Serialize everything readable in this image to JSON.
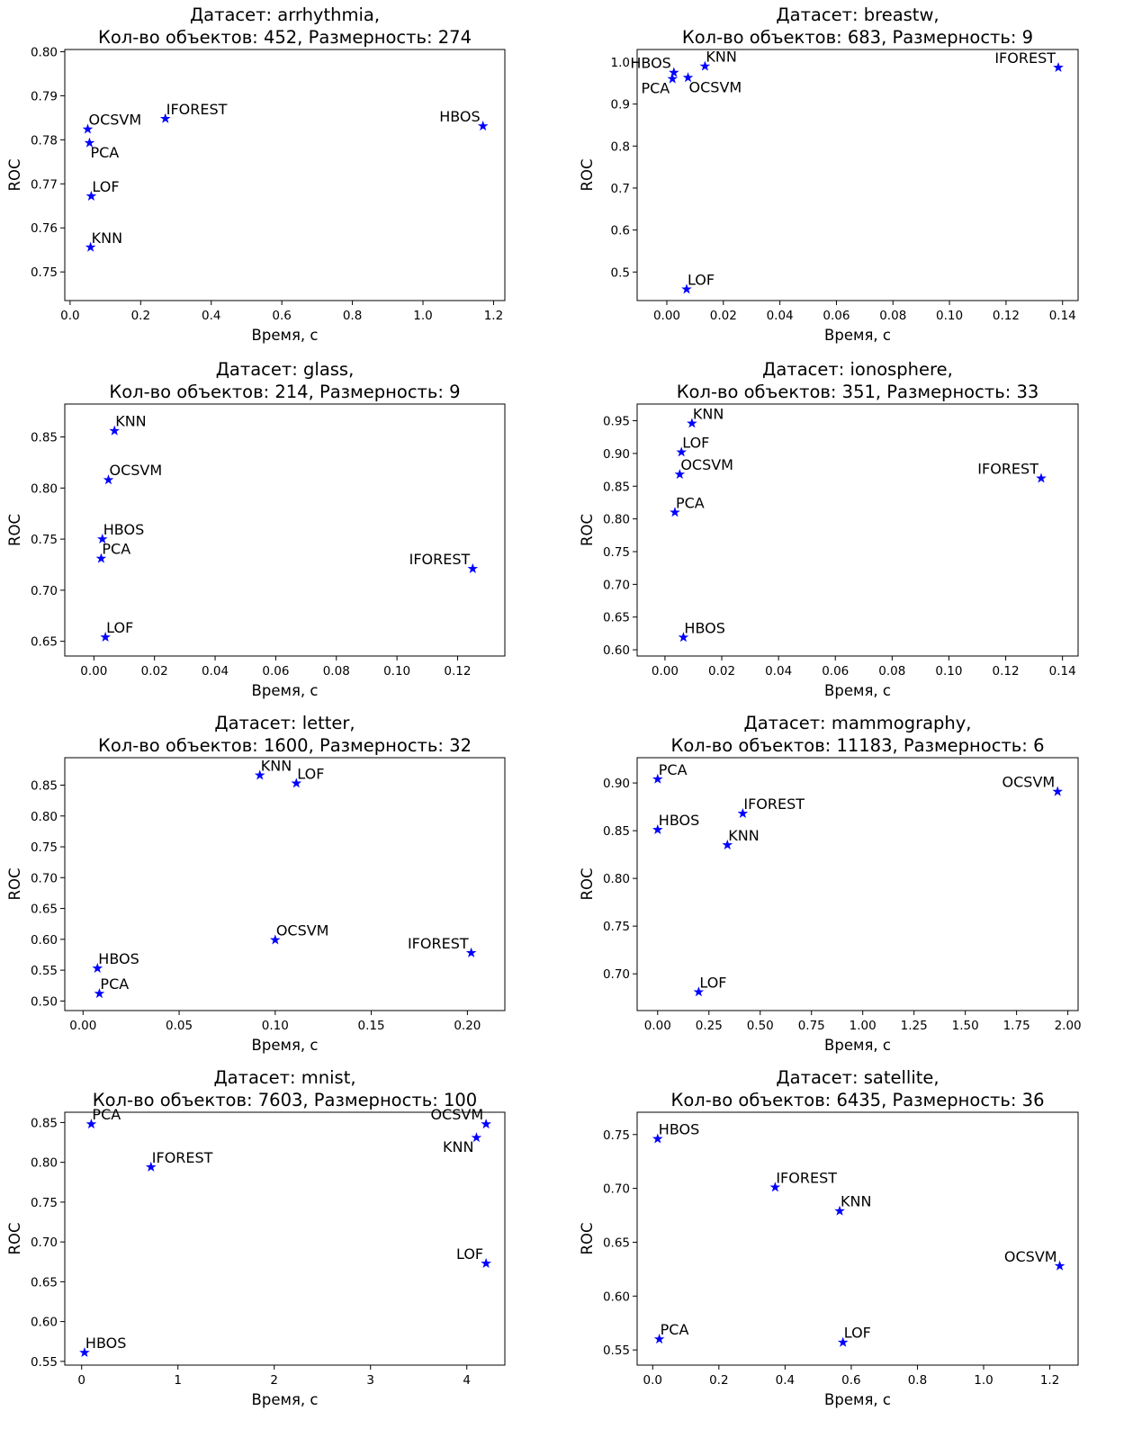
{
  "chart_data": [
    {
      "type": "scatter",
      "title_line1": "Датасет: arrhythmia,",
      "title_line2": "Кол-во объектов: 452, Размерность: 274",
      "xlabel": "Время, с",
      "ylabel": "ROC",
      "xlim": [
        -0.015,
        1.232
      ],
      "ylim": [
        0.7435,
        0.8005
      ],
      "xticks": [
        0.0,
        0.2,
        0.4,
        0.6,
        0.8,
        1.0,
        1.2
      ],
      "xtick_labels": [
        "0.0",
        "0.2",
        "0.4",
        "0.6",
        "0.8",
        "1.0",
        "1.2"
      ],
      "yticks": [
        0.75,
        0.76,
        0.77,
        0.78,
        0.79,
        0.8
      ],
      "ytick_labels": [
        "0.75",
        "0.76",
        "0.77",
        "0.78",
        "0.79",
        "0.80"
      ],
      "marker_color": "#0000ff",
      "points": [
        {
          "label": "OCSVM",
          "x": 0.05,
          "y": 0.7824,
          "anchor": "right"
        },
        {
          "label": "IFOREST",
          "x": 0.27,
          "y": 0.7848,
          "anchor": "right"
        },
        {
          "label": "PCA",
          "x": 0.055,
          "y": 0.7793,
          "anchor": "below"
        },
        {
          "label": "HBOS",
          "x": 1.17,
          "y": 0.7831,
          "anchor": "left"
        },
        {
          "label": "LOF",
          "x": 0.06,
          "y": 0.7672,
          "anchor": "right"
        },
        {
          "label": "KNN",
          "x": 0.058,
          "y": 0.7556,
          "anchor": "right"
        }
      ]
    },
    {
      "type": "scatter",
      "title_line1": "Датасет: breastw,",
      "title_line2": "Кол-во объектов: 683, Размерность: 9",
      "xlabel": "Время, с",
      "ylabel": "ROC",
      "xlim": [
        -0.0105,
        0.1455
      ],
      "ylim": [
        0.432,
        1.03
      ],
      "xticks": [
        0.0,
        0.02,
        0.04,
        0.06,
        0.08,
        0.1,
        0.12,
        0.14
      ],
      "xtick_labels": [
        "0.00",
        "0.02",
        "0.04",
        "0.06",
        "0.08",
        "0.10",
        "0.12",
        "0.14"
      ],
      "yticks": [
        0.5,
        0.6,
        0.7,
        0.8,
        0.9,
        1.0
      ],
      "ytick_labels": [
        "0.5",
        "0.6",
        "0.7",
        "0.8",
        "0.9",
        "1.0"
      ],
      "marker_color": "#0000ff",
      "points": [
        {
          "label": "HBOS",
          "x": 0.0025,
          "y": 0.975,
          "anchor": "left"
        },
        {
          "label": "PCA",
          "x": 0.002,
          "y": 0.96,
          "anchor": "below-left"
        },
        {
          "label": "KNN",
          "x": 0.0135,
          "y": 0.99,
          "anchor": "right"
        },
        {
          "label": "OCSVM",
          "x": 0.0075,
          "y": 0.963,
          "anchor": "below-right"
        },
        {
          "label": "IFOREST",
          "x": 0.1385,
          "y": 0.987,
          "anchor": "left"
        },
        {
          "label": "LOF",
          "x": 0.007,
          "y": 0.459,
          "anchor": "right"
        }
      ]
    },
    {
      "type": "scatter",
      "title_line1": "Датасет: glass,",
      "title_line2": "Кол-во объектов: 214, Размерность: 9",
      "xlabel": "Время, с",
      "ylabel": "ROC",
      "xlim": [
        -0.0096,
        0.1356
      ],
      "ylim": [
        0.6356,
        0.8822
      ],
      "xticks": [
        0.0,
        0.02,
        0.04,
        0.06,
        0.08,
        0.1,
        0.12
      ],
      "xtick_labels": [
        "0.00",
        "0.02",
        "0.04",
        "0.06",
        "0.08",
        "0.10",
        "0.12"
      ],
      "yticks": [
        0.65,
        0.7,
        0.75,
        0.8,
        0.85
      ],
      "ytick_labels": [
        "0.65",
        "0.70",
        "0.75",
        "0.80",
        "0.85"
      ],
      "marker_color": "#0000ff",
      "points": [
        {
          "label": "KNN",
          "x": 0.0068,
          "y": 0.856,
          "anchor": "right"
        },
        {
          "label": "OCSVM",
          "x": 0.0048,
          "y": 0.808,
          "anchor": "right"
        },
        {
          "label": "HBOS",
          "x": 0.0028,
          "y": 0.75,
          "anchor": "right"
        },
        {
          "label": "PCA",
          "x": 0.0024,
          "y": 0.731,
          "anchor": "right"
        },
        {
          "label": "IFOREST",
          "x": 0.125,
          "y": 0.721,
          "anchor": "left"
        },
        {
          "label": "LOF",
          "x": 0.0038,
          "y": 0.654,
          "anchor": "right"
        }
      ]
    },
    {
      "type": "scatter",
      "title_line1": "Датасет: ionosphere,",
      "title_line2": "Кол-во объектов: 351, Размерность: 33",
      "xlabel": "Время, с",
      "ylabel": "ROC",
      "xlim": [
        -0.0098,
        0.1455
      ],
      "ylim": [
        0.5905,
        0.9755
      ],
      "xticks": [
        0.0,
        0.02,
        0.04,
        0.06,
        0.08,
        0.1,
        0.12,
        0.14
      ],
      "xtick_labels": [
        "0.00",
        "0.02",
        "0.04",
        "0.06",
        "0.08",
        "0.10",
        "0.12",
        "0.14"
      ],
      "yticks": [
        0.6,
        0.65,
        0.7,
        0.75,
        0.8,
        0.85,
        0.9,
        0.95
      ],
      "ytick_labels": [
        "0.60",
        "0.65",
        "0.70",
        "0.75",
        "0.80",
        "0.85",
        "0.90",
        "0.95"
      ],
      "marker_color": "#0000ff",
      "points": [
        {
          "label": "KNN",
          "x": 0.0095,
          "y": 0.946,
          "anchor": "right"
        },
        {
          "label": "LOF",
          "x": 0.0058,
          "y": 0.902,
          "anchor": "right"
        },
        {
          "label": "OCSVM",
          "x": 0.0052,
          "y": 0.868,
          "anchor": "right"
        },
        {
          "label": "IFOREST",
          "x": 0.1325,
          "y": 0.862,
          "anchor": "left"
        },
        {
          "label": "PCA",
          "x": 0.0035,
          "y": 0.81,
          "anchor": "right"
        },
        {
          "label": "HBOS",
          "x": 0.0065,
          "y": 0.619,
          "anchor": "right"
        }
      ]
    },
    {
      "type": "scatter",
      "title_line1": "Датасет: letter,",
      "title_line2": "Кол-во объектов: 1600, Размерность: 32",
      "xlabel": "Время, с",
      "ylabel": "ROC",
      "xlim": [
        -0.0095,
        0.2195
      ],
      "ylim": [
        0.4845,
        0.8945
      ],
      "xticks": [
        0.0,
        0.05,
        0.1,
        0.15,
        0.2
      ],
      "xtick_labels": [
        "0.00",
        "0.05",
        "0.10",
        "0.15",
        "0.20"
      ],
      "yticks": [
        0.5,
        0.55,
        0.6,
        0.65,
        0.7,
        0.75,
        0.8,
        0.85
      ],
      "ytick_labels": [
        "0.50",
        "0.55",
        "0.60",
        "0.65",
        "0.70",
        "0.75",
        "0.80",
        "0.85"
      ],
      "marker_color": "#0000ff",
      "points": [
        {
          "label": "KNN",
          "x": 0.092,
          "y": 0.866,
          "anchor": "right"
        },
        {
          "label": "LOF",
          "x": 0.111,
          "y": 0.853,
          "anchor": "right"
        },
        {
          "label": "OCSVM",
          "x": 0.1,
          "y": 0.599,
          "anchor": "right"
        },
        {
          "label": "IFOREST",
          "x": 0.202,
          "y": 0.578,
          "anchor": "left"
        },
        {
          "label": "HBOS",
          "x": 0.0075,
          "y": 0.553,
          "anchor": "right"
        },
        {
          "label": "PCA",
          "x": 0.0085,
          "y": 0.512,
          "anchor": "right"
        }
      ]
    },
    {
      "type": "scatter",
      "title_line1": "Датасет: mammography,",
      "title_line2": "Кол-во объектов: 11183, Размерность: 6",
      "xlabel": "Время, с",
      "ylabel": "ROC",
      "xlim": [
        -0.1,
        2.05
      ],
      "ylim": [
        0.6615,
        0.9265
      ],
      "xticks": [
        0.0,
        0.25,
        0.5,
        0.75,
        1.0,
        1.25,
        1.5,
        1.75,
        2.0
      ],
      "xtick_labels": [
        "0.00",
        "0.25",
        "0.50",
        "0.75",
        "1.00",
        "1.25",
        "1.50",
        "1.75",
        "2.00"
      ],
      "yticks": [
        0.7,
        0.75,
        0.8,
        0.85,
        0.9
      ],
      "ytick_labels": [
        "0.70",
        "0.75",
        "0.80",
        "0.85",
        "0.90"
      ],
      "marker_color": "#0000ff",
      "points": [
        {
          "label": "PCA",
          "x": 0.0,
          "y": 0.904,
          "anchor": "right"
        },
        {
          "label": "OCSVM",
          "x": 1.95,
          "y": 0.891,
          "anchor": "left"
        },
        {
          "label": "IFOREST",
          "x": 0.415,
          "y": 0.868,
          "anchor": "right"
        },
        {
          "label": "HBOS",
          "x": 0.0,
          "y": 0.851,
          "anchor": "right"
        },
        {
          "label": "KNN",
          "x": 0.34,
          "y": 0.835,
          "anchor": "right"
        },
        {
          "label": "LOF",
          "x": 0.2,
          "y": 0.681,
          "anchor": "right"
        }
      ]
    },
    {
      "type": "scatter",
      "title_line1": "Датасет: mnist,",
      "title_line2": "Кол-во объектов: 7603, Размерность: 100",
      "xlabel": "Время, с",
      "ylabel": "ROC",
      "xlim": [
        -0.175,
        4.395
      ],
      "ylim": [
        0.5453,
        0.8629
      ],
      "xticks": [
        0,
        1,
        2,
        3,
        4
      ],
      "xtick_labels": [
        "0",
        "1",
        "2",
        "3",
        "4"
      ],
      "yticks": [
        0.55,
        0.6,
        0.65,
        0.7,
        0.75,
        0.8,
        0.85
      ],
      "ytick_labels": [
        "0.55",
        "0.60",
        "0.65",
        "0.70",
        "0.75",
        "0.80",
        "0.85"
      ],
      "marker_color": "#0000ff",
      "points": [
        {
          "label": "PCA",
          "x": 0.1,
          "y": 0.848,
          "anchor": "right"
        },
        {
          "label": "OCSVM",
          "x": 4.2,
          "y": 0.848,
          "anchor": "left"
        },
        {
          "label": "KNN",
          "x": 4.1,
          "y": 0.831,
          "anchor": "below-left"
        },
        {
          "label": "IFOREST",
          "x": 0.72,
          "y": 0.794,
          "anchor": "right"
        },
        {
          "label": "LOF",
          "x": 4.2,
          "y": 0.673,
          "anchor": "left"
        },
        {
          "label": "HBOS",
          "x": 0.03,
          "y": 0.561,
          "anchor": "right"
        }
      ]
    },
    {
      "type": "scatter",
      "title_line1": "Датасет: satellite,",
      "title_line2": "Кол-во объектов: 6435, Размерность: 36",
      "xlabel": "Время, с",
      "ylabel": "ROC",
      "xlim": [
        -0.047,
        1.2855
      ],
      "ylim": [
        0.5359,
        0.7707
      ],
      "xticks": [
        0.0,
        0.2,
        0.4,
        0.6,
        0.8,
        1.0,
        1.2
      ],
      "xtick_labels": [
        "0.0",
        "0.2",
        "0.4",
        "0.6",
        "0.8",
        "1.0",
        "1.2"
      ],
      "yticks": [
        0.55,
        0.6,
        0.65,
        0.7,
        0.75
      ],
      "ytick_labels": [
        "0.55",
        "0.60",
        "0.65",
        "0.70",
        "0.75"
      ],
      "marker_color": "#0000ff",
      "points": [
        {
          "label": "HBOS",
          "x": 0.015,
          "y": 0.746,
          "anchor": "right"
        },
        {
          "label": "IFOREST",
          "x": 0.37,
          "y": 0.701,
          "anchor": "right"
        },
        {
          "label": "KNN",
          "x": 0.565,
          "y": 0.679,
          "anchor": "right"
        },
        {
          "label": "OCSVM",
          "x": 1.23,
          "y": 0.628,
          "anchor": "left"
        },
        {
          "label": "PCA",
          "x": 0.02,
          "y": 0.56,
          "anchor": "right"
        },
        {
          "label": "LOF",
          "x": 0.575,
          "y": 0.557,
          "anchor": "right"
        }
      ]
    }
  ]
}
